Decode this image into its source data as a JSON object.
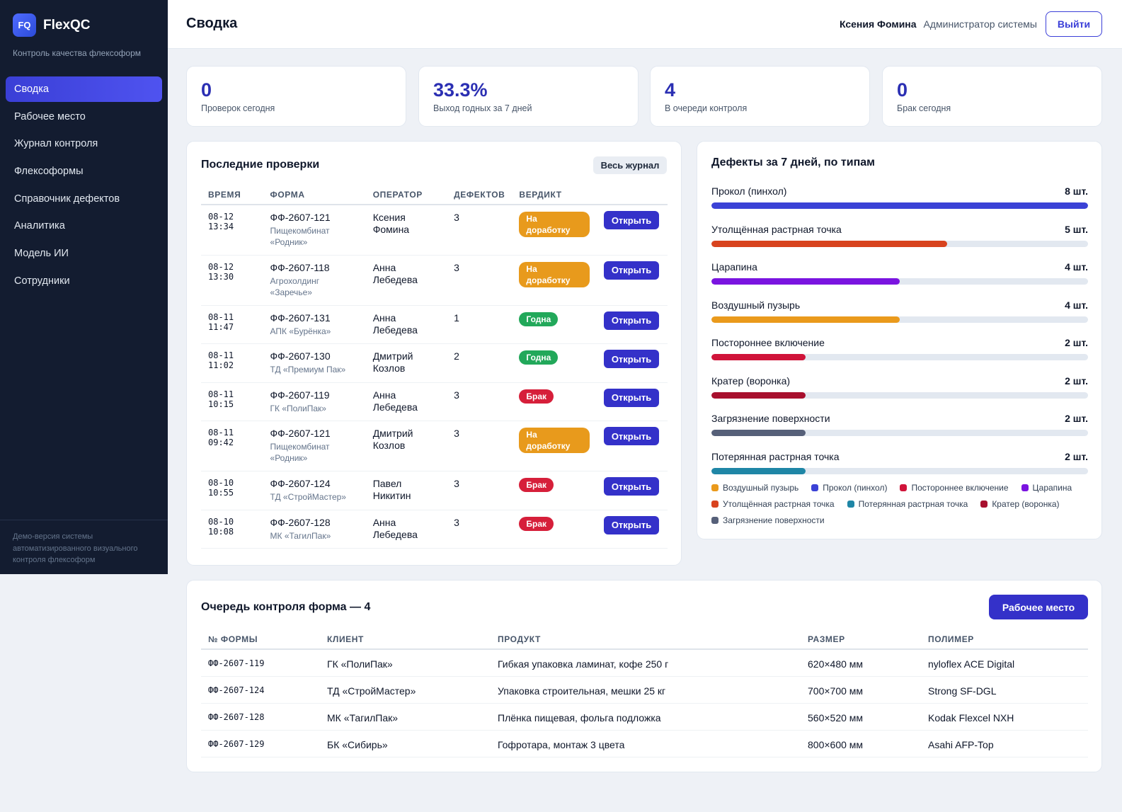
{
  "app": {
    "logo_mark": "FQ",
    "name": "FlexQC",
    "tagline": "Контроль качества флексоформ"
  },
  "sidebar": {
    "items": [
      {
        "label": "Сводка",
        "active": true
      },
      {
        "label": "Рабочее место"
      },
      {
        "label": "Журнал контроля"
      },
      {
        "label": "Флексоформы"
      },
      {
        "label": "Справочник дефектов"
      },
      {
        "label": "Аналитика"
      },
      {
        "label": "Модель ИИ"
      },
      {
        "label": "Сотрудники"
      }
    ],
    "footer": "Демо-версия системы автоматизированного визуального контроля флексоформ"
  },
  "header": {
    "title": "Сводка",
    "user_name": "Ксения Фомина",
    "user_role": "Администратор системы",
    "logout": "Выйти"
  },
  "kpis": [
    {
      "value": "0",
      "label": "Проверок сегодня"
    },
    {
      "value": "33.3%",
      "label": "Выход годных за 7 дней"
    },
    {
      "value": "4",
      "label": "В очереди контроля"
    },
    {
      "value": "0",
      "label": "Брак сегодня"
    }
  ],
  "recent": {
    "title": "Последние проверки",
    "all_button": "Весь журнал",
    "columns": [
      "ВРЕМЯ",
      "ФОРМА",
      "ОПЕРАТОР",
      "ДЕФЕКТОВ",
      "ВЕРДИКТ"
    ],
    "open_label": "Открыть",
    "rows": [
      {
        "date": "08-12",
        "time": "13:34",
        "form": "ФФ-2607-121",
        "client": "Пищекомбинат «Родник»",
        "op1": "Ксения",
        "op2": "Фомина",
        "defects": "3",
        "verdict": "На доработку",
        "vclass": "b-rework"
      },
      {
        "date": "08-12",
        "time": "13:30",
        "form": "ФФ-2607-118",
        "client": "Агрохолдинг «Заречье»",
        "op1": "Анна",
        "op2": "Лебедева",
        "defects": "3",
        "verdict": "На доработку",
        "vclass": "b-rework"
      },
      {
        "date": "08-11",
        "time": "11:47",
        "form": "ФФ-2607-131",
        "client": "АПК «Бурёнка»",
        "op1": "Анна",
        "op2": "Лебедева",
        "defects": "1",
        "verdict": "Годна",
        "vclass": "b-ok"
      },
      {
        "date": "08-11",
        "time": "11:02",
        "form": "ФФ-2607-130",
        "client": "ТД «Премиум Пак»",
        "op1": "Дмитрий",
        "op2": "Козлов",
        "defects": "2",
        "verdict": "Годна",
        "vclass": "b-ok"
      },
      {
        "date": "08-11",
        "time": "10:15",
        "form": "ФФ-2607-119",
        "client": "ГК «ПолиПак»",
        "op1": "Анна",
        "op2": "Лебедева",
        "defects": "3",
        "verdict": "Брак",
        "vclass": "b-rej"
      },
      {
        "date": "08-11",
        "time": "09:42",
        "form": "ФФ-2607-121",
        "client": "Пищекомбинат «Родник»",
        "op1": "Дмитрий",
        "op2": "Козлов",
        "defects": "3",
        "verdict": "На доработку",
        "vclass": "b-rework"
      },
      {
        "date": "08-10",
        "time": "10:55",
        "form": "ФФ-2607-124",
        "client": "ТД «СтройМастер»",
        "op1": "Павел",
        "op2": "Никитин",
        "defects": "3",
        "verdict": "Брак",
        "vclass": "b-rej"
      },
      {
        "date": "08-10",
        "time": "10:08",
        "form": "ФФ-2607-128",
        "client": "МК «ТагилПак»",
        "op1": "Анна",
        "op2": "Лебедева",
        "defects": "3",
        "verdict": "Брак",
        "vclass": "b-rej"
      }
    ]
  },
  "chart_data": {
    "type": "bar",
    "title": "Дефекты за 7 дней, по типам",
    "orientation": "horizontal",
    "max": 8,
    "categories": [
      "Прокол (пинхол)",
      "Утолщённая растрная точка",
      "Царапина",
      "Воздушный пузырь",
      "Постороннее включение",
      "Кратер (воронка)",
      "Загрязнение поверхности",
      "Потерянная растрная точка"
    ],
    "values": [
      8,
      5,
      4,
      4,
      2,
      2,
      2,
      2
    ],
    "count_labels": [
      "8 шт.",
      "5 шт.",
      "4 шт.",
      "4 шт.",
      "2 шт.",
      "2 шт.",
      "2 шт.",
      "2 шт."
    ],
    "colors": [
      "#3b42d6",
      "#d8431e",
      "#7a14e0",
      "#ea9a1c",
      "#d0143a",
      "#a8102e",
      "#566079",
      "#1f86a6"
    ],
    "legend": [
      {
        "label": "Воздушный пузырь",
        "color": "#ea9a1c"
      },
      {
        "label": "Прокол (пинхол)",
        "color": "#3b42d6"
      },
      {
        "label": "Постороннее включение",
        "color": "#d0143a"
      },
      {
        "label": "Царапина",
        "color": "#7a14e0"
      },
      {
        "label": "Утолщённая растрная точка",
        "color": "#d8431e"
      },
      {
        "label": "Потерянная растрная точка",
        "color": "#1f86a6"
      },
      {
        "label": "Кратер (воронка)",
        "color": "#a8102e"
      },
      {
        "label": "Загрязнение поверхности",
        "color": "#566079"
      }
    ]
  },
  "queue": {
    "title": "Очередь контроля форма — 4",
    "button": "Рабочее место",
    "columns": [
      "№ ФОРМЫ",
      "КЛИЕНТ",
      "ПРОДУКТ",
      "РАЗМЕР",
      "ПОЛИМЕР"
    ],
    "rows": [
      {
        "id": "ФФ-2607-119",
        "client": "ГК «ПолиПак»",
        "product": "Гибкая упаковка ламинат, кофе 250 г",
        "size": "620×480 мм",
        "polymer": "nyloflex ACE Digital"
      },
      {
        "id": "ФФ-2607-124",
        "client": "ТД «СтройМастер»",
        "product": "Упаковка строительная, мешки 25 кг",
        "size": "700×700 мм",
        "polymer": "Strong SF-DGL"
      },
      {
        "id": "ФФ-2607-128",
        "client": "МК «ТагилПак»",
        "product": "Плёнка пищевая, фольга подложка",
        "size": "560×520 мм",
        "polymer": "Kodak Flexcel NXH"
      },
      {
        "id": "ФФ-2607-129",
        "client": "БК «Сибирь»",
        "product": "Гофротара, монтаж 3 цвета",
        "size": "800×600 мм",
        "polymer": "Asahi AFP-Top"
      }
    ]
  }
}
